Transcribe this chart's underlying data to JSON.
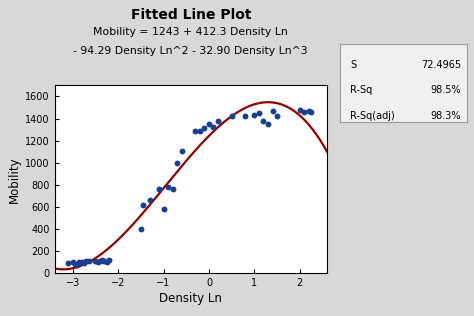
{
  "title": "Fitted Line Plot",
  "subtitle_line1": "Mobility = 1243 + 412.3 Density Ln",
  "subtitle_line2": "- 94.29 Density Ln^2 - 32.90 Density Ln^3",
  "xlabel": "Density Ln",
  "ylabel": "Mobility",
  "xlim": [
    -3.4,
    2.6
  ],
  "ylim": [
    0,
    1700
  ],
  "xticks": [
    -3,
    -2,
    -1,
    0,
    1,
    2
  ],
  "yticks": [
    0,
    200,
    400,
    600,
    800,
    1000,
    1200,
    1400,
    1600
  ],
  "bg_color": "#d8d8d8",
  "plot_bg_color": "#ffffff",
  "scatter_color": "#1a3f8f",
  "line_color": "#8B0000",
  "scatter_x": [
    -3.1,
    -3.0,
    -2.95,
    -2.9,
    -2.85,
    -2.8,
    -2.75,
    -2.7,
    -2.65,
    -2.5,
    -2.45,
    -2.4,
    -2.35,
    -2.3,
    -2.25,
    -2.2,
    -1.5,
    -1.45,
    -1.3,
    -1.1,
    -1.0,
    -0.9,
    -0.8,
    -0.7,
    -0.6,
    -0.3,
    -0.2,
    -0.1,
    0.0,
    0.1,
    0.2,
    0.5,
    0.8,
    1.0,
    1.1,
    1.2,
    1.3,
    1.4,
    1.5,
    2.0,
    2.1,
    2.2,
    2.25
  ],
  "scatter_y": [
    95,
    105,
    80,
    75,
    100,
    100,
    90,
    110,
    110,
    115,
    105,
    110,
    120,
    115,
    100,
    125,
    405,
    620,
    660,
    760,
    580,
    780,
    760,
    1000,
    1110,
    1290,
    1290,
    1310,
    1350,
    1320,
    1375,
    1420,
    1420,
    1430,
    1450,
    1380,
    1350,
    1470,
    1420,
    1480,
    1460,
    1470,
    1460
  ],
  "stats_s": "72.4965",
  "stats_rsq": "98.5%",
  "stats_rsqadj": "98.3%",
  "coef": [
    1243,
    412.3,
    -94.29,
    -32.9
  ]
}
